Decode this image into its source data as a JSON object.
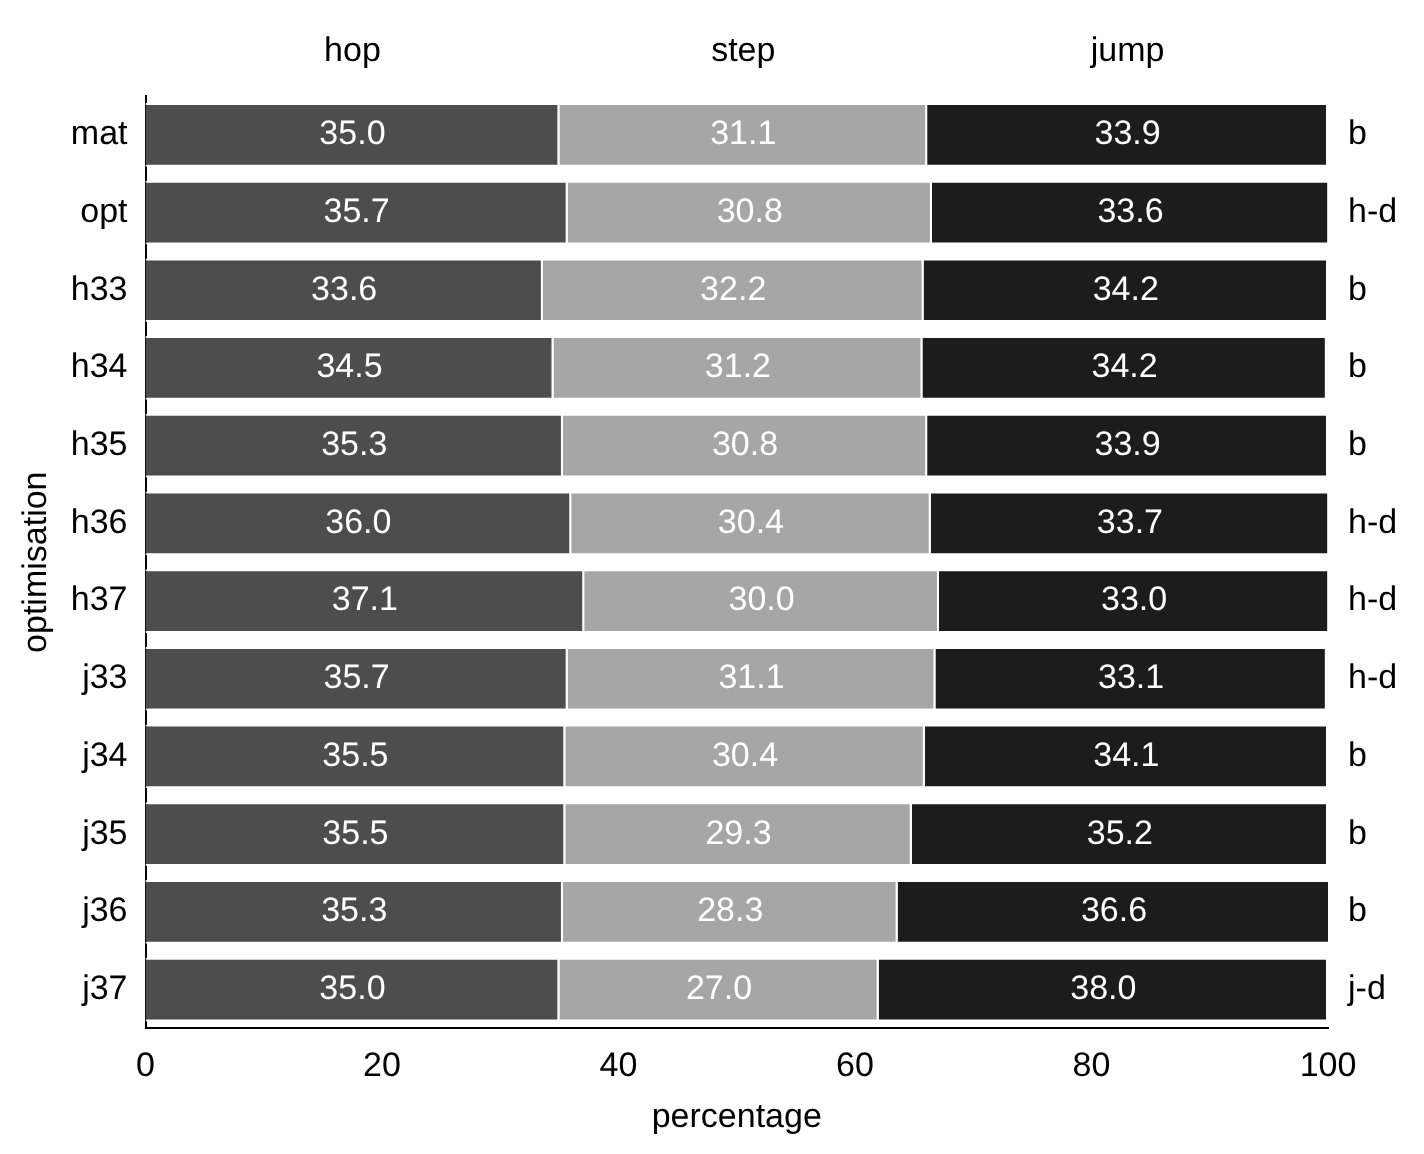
{
  "chart_data": {
    "type": "bar",
    "orientation": "horizontal",
    "stacked": true,
    "xlabel": "percentage",
    "ylabel": "optimisation",
    "categories": [
      "mat",
      "opt",
      "h33",
      "h34",
      "h35",
      "h36",
      "h37",
      "j33",
      "j34",
      "j35",
      "j36",
      "j37"
    ],
    "series": [
      {
        "name": "hop",
        "color": "#4d4d4d",
        "values": [
          35.0,
          35.7,
          33.6,
          34.5,
          35.3,
          36.0,
          37.1,
          35.7,
          35.5,
          35.5,
          35.3,
          35.0
        ],
        "value_labels": [
          "35.0",
          "35.7",
          "33.6",
          "34.5",
          "35.3",
          "36.0",
          "37.1",
          "35.7",
          "35.5",
          "35.5",
          "35.3",
          "35.0"
        ]
      },
      {
        "name": "step",
        "color": "#a6a6a6",
        "values": [
          31.1,
          30.8,
          32.2,
          31.2,
          30.8,
          30.4,
          30.0,
          31.1,
          30.4,
          29.3,
          28.3,
          27.0
        ],
        "value_labels": [
          "31.1",
          "30.8",
          "32.2",
          "31.2",
          "30.8",
          "30.4",
          "30.0",
          "31.1",
          "30.4",
          "29.3",
          "28.3",
          "27.0"
        ]
      },
      {
        "name": "jump",
        "color": "#1c1c1c",
        "values": [
          33.9,
          33.6,
          34.2,
          34.2,
          33.9,
          33.7,
          33.0,
          33.1,
          34.1,
          35.2,
          36.6,
          38.0
        ],
        "value_labels": [
          "33.9",
          "33.6",
          "34.2",
          "34.2",
          "33.9",
          "33.7",
          "33.0",
          "33.1",
          "34.1",
          "35.2",
          "36.6",
          "38.0"
        ]
      }
    ],
    "xlim": [
      0,
      100
    ],
    "xticks": [
      0,
      20,
      40,
      60,
      80,
      100
    ],
    "grid": false,
    "legend": "top",
    "annotations": [
      "b",
      "h-d",
      "b",
      "b",
      "b",
      "h-d",
      "h-d",
      "h-d",
      "b",
      "b",
      "b",
      "j-d"
    ]
  }
}
